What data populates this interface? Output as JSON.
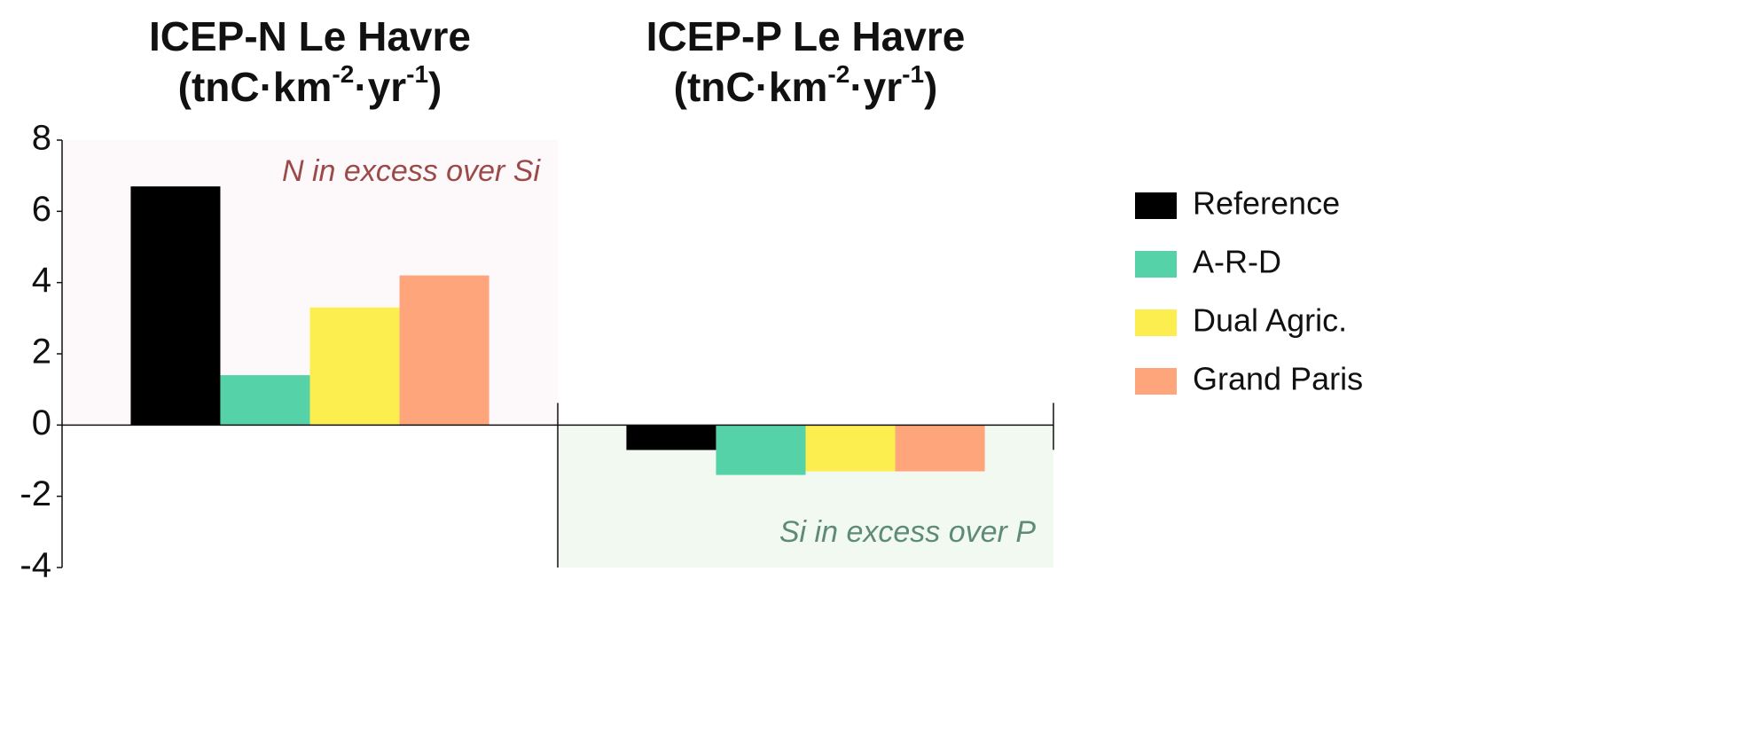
{
  "chart_data": {
    "type": "bar",
    "categories": [
      "ICEP-N Le Havre",
      "ICEP-P Le Havre"
    ],
    "unit_label": [
      "(tnC·km",
      "-2",
      "·yr",
      "-1",
      ")"
    ],
    "annotations": [
      {
        "text": "N in excess over Si",
        "color": "#9b4a48",
        "background": "#fdf8fa"
      },
      {
        "text": "Si in excess over P",
        "color": "#5e8a7a",
        "background": "#f2f9f1"
      }
    ],
    "series": [
      {
        "name": "Reference",
        "color": "#000000",
        "values": [
          6.7,
          -0.7
        ]
      },
      {
        "name": "A-R-D",
        "color": "#55d2a8",
        "values": [
          1.4,
          -1.4
        ]
      },
      {
        "name": "Dual Agric.",
        "color": "#fdee50",
        "values": [
          3.3,
          -1.3
        ]
      },
      {
        "name": "Grand Paris",
        "color": "#fea57b",
        "values": [
          4.2,
          -1.3
        ]
      }
    ],
    "ylim": [
      -4,
      8
    ],
    "yticks": [
      -4,
      -2,
      0,
      2,
      4,
      6,
      8
    ],
    "legend": "right"
  }
}
